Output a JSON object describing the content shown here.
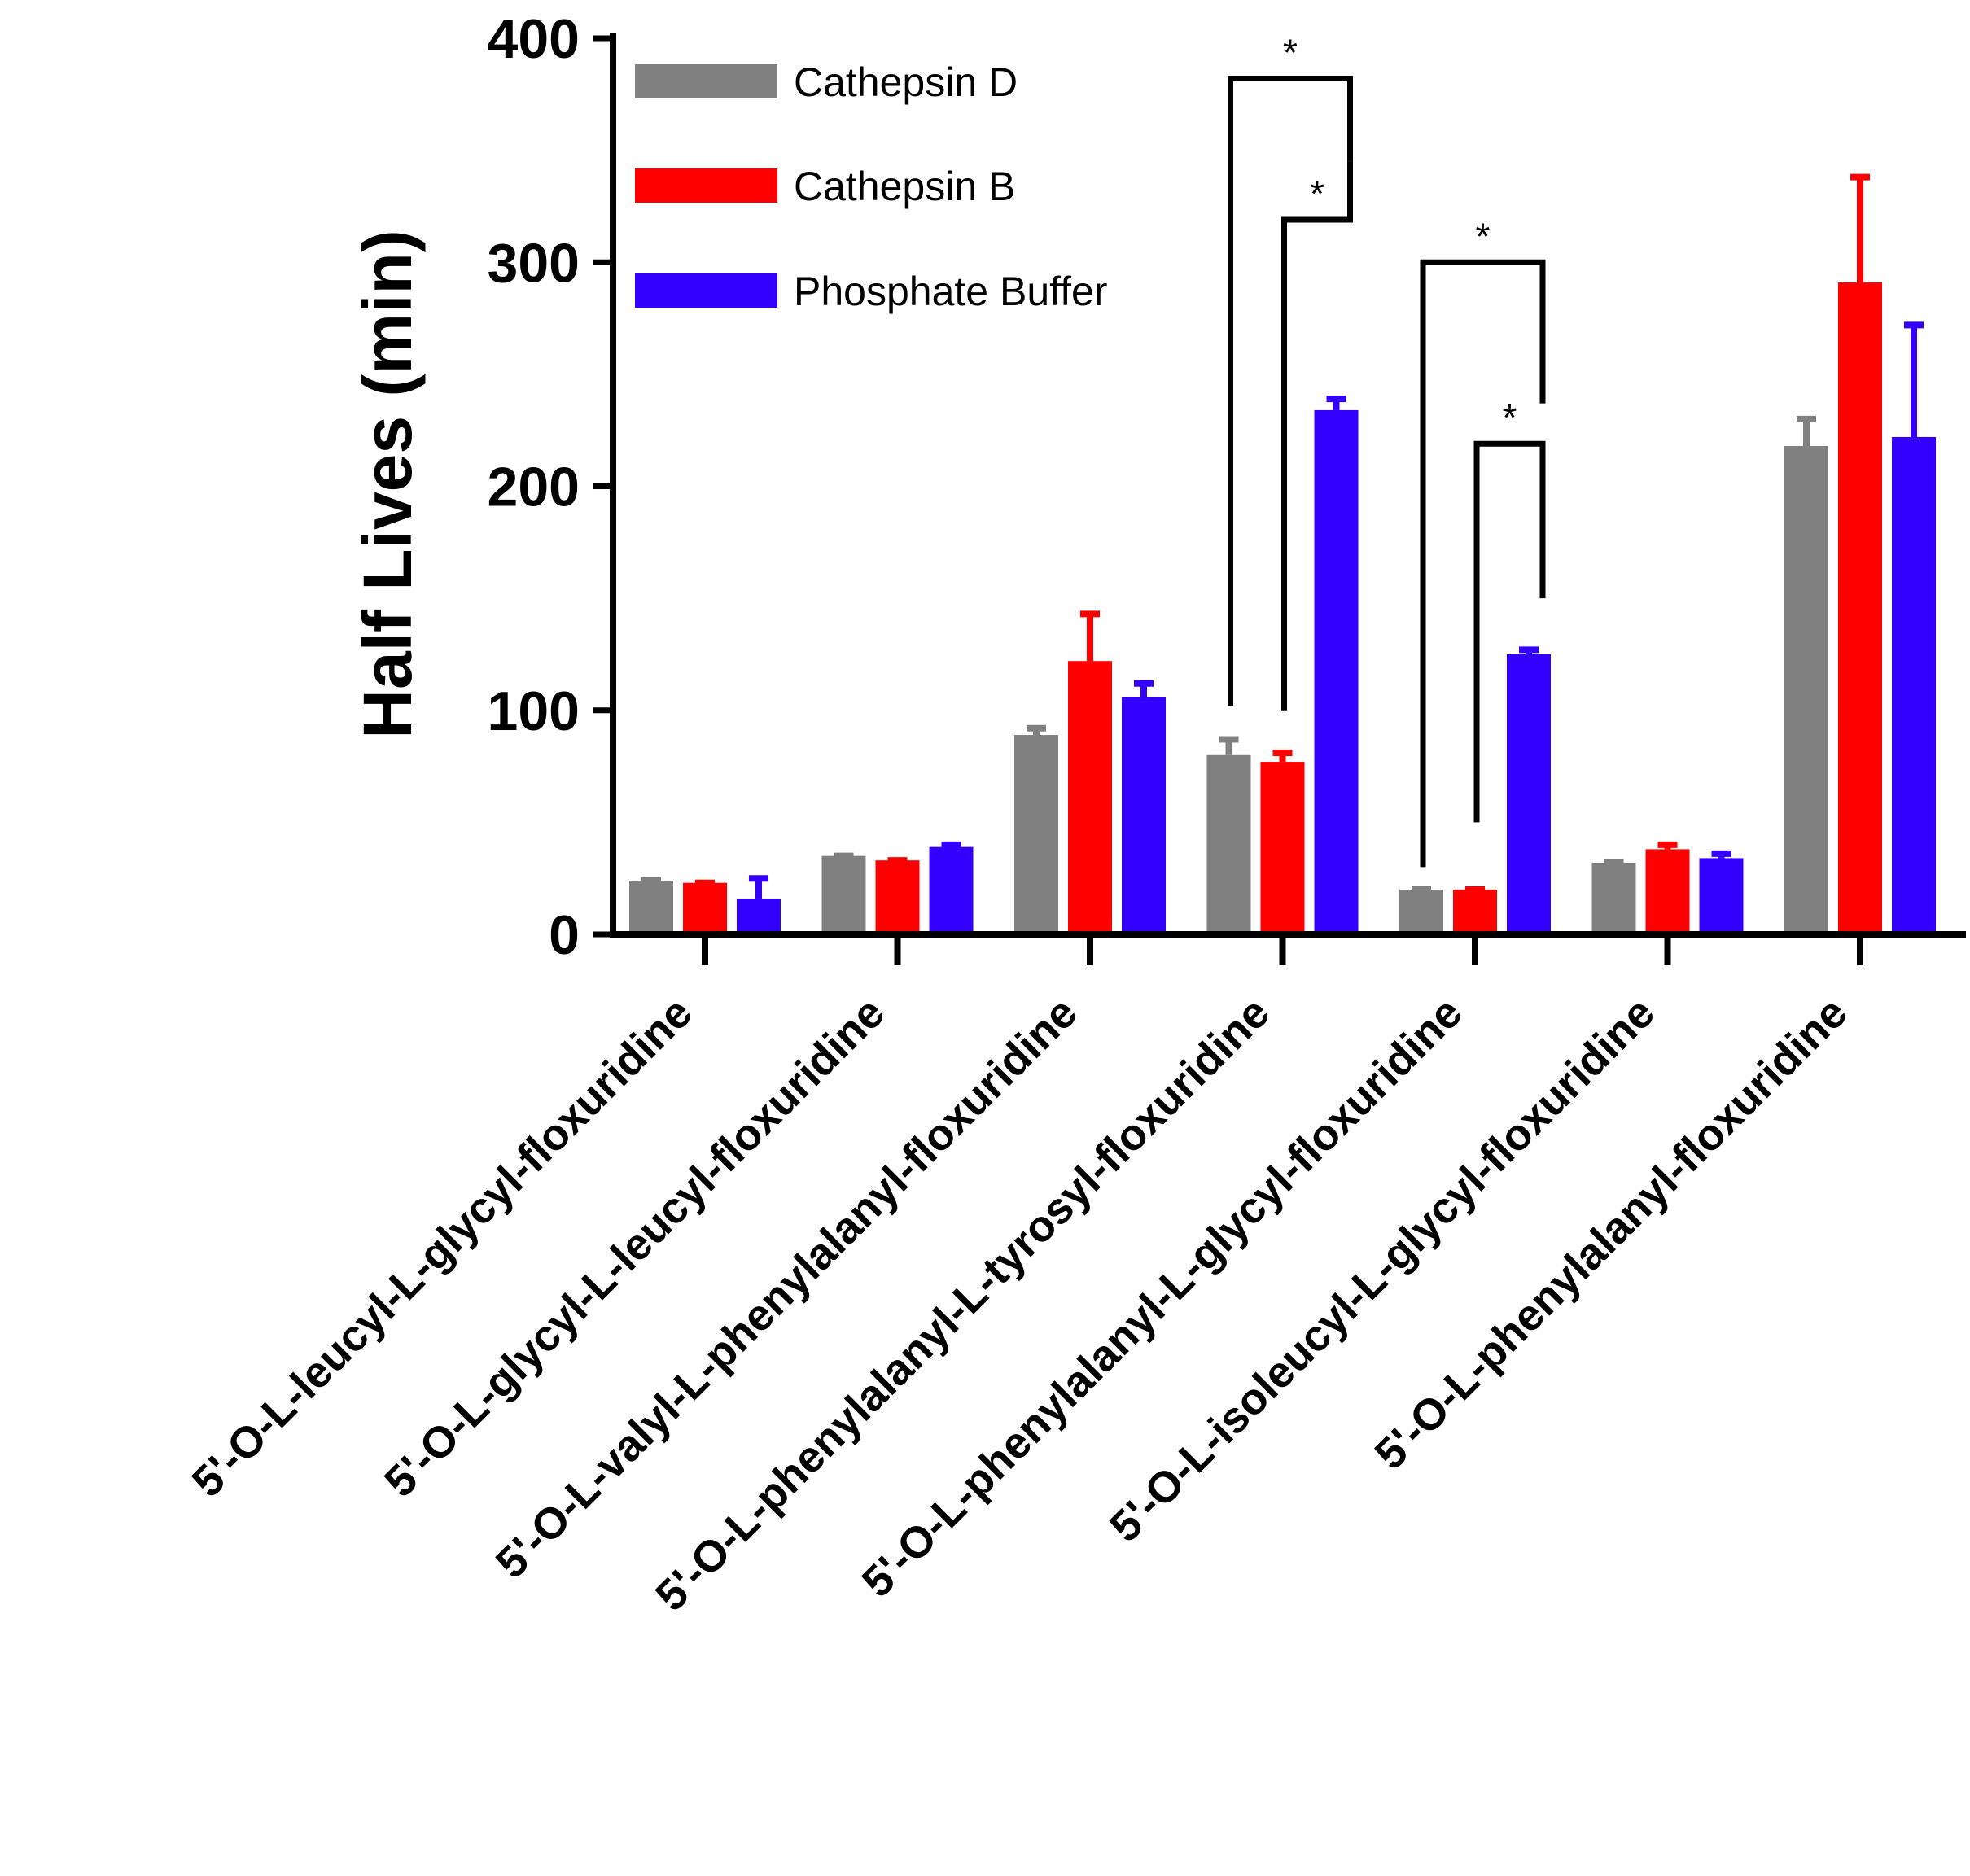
{
  "chart_data": {
    "type": "bar",
    "title": "",
    "xlabel": "",
    "ylabel": "Half Lives (min)",
    "ylim": [
      0,
      400
    ],
    "yticks": [
      0,
      100,
      200,
      300,
      400
    ],
    "legend_position": "top-left",
    "categories": [
      "5'-O-L-leucyl-L-glycyl-floxuridine",
      "5'-O-L-glycyl-L-leucyl-floxuridine",
      "5'-O-L-valyl-L-phenylalanyl-floxuridine",
      "5'-O-L-phenylalanyl-L-tyrosyl-floxuridine",
      "5'-O-L-phenylalanyl-L-glycyl-floxuridine",
      "5'-O-L-isoleucyl-L-glycyl-floxuridine",
      "5'-O-L-phenylalanyl-floxuridine"
    ],
    "series": [
      {
        "name": "Cathepsin D",
        "color": "#808080",
        "values": [
          24,
          35,
          89,
          80,
          20,
          32,
          218
        ],
        "errors": [
          0,
          0,
          3,
          7,
          0,
          0,
          12
        ]
      },
      {
        "name": "Cathepsin B",
        "color": "#ff0000",
        "values": [
          23,
          33,
          122,
          77,
          20,
          38,
          291
        ],
        "errors": [
          0,
          0,
          21,
          4,
          0,
          2,
          47
        ]
      },
      {
        "name": "Phosphate Buffer",
        "color": "#3300ff",
        "values": [
          16,
          39,
          106,
          234,
          125,
          34,
          222
        ],
        "errors": [
          9,
          1,
          6,
          5,
          2,
          2,
          50
        ]
      }
    ],
    "significance": [
      {
        "label": "*",
        "category": 3,
        "from_series": 0,
        "to_series": 2,
        "bracket_y": 382,
        "start_y": 102,
        "end_y": 345
      },
      {
        "label": "*",
        "category": 3,
        "from_series": 1,
        "to_series": 2,
        "bracket_y": 319,
        "start_y": 100,
        "end_y": 345
      },
      {
        "label": "*",
        "category": 4,
        "from_series": 0,
        "to_series": 2,
        "bracket_y": 300,
        "start_y": 30,
        "end_y": 237
      },
      {
        "label": "*",
        "category": 4,
        "from_series": 1,
        "to_series": 2,
        "bracket_y": 219,
        "start_y": 50,
        "end_y": 150
      }
    ]
  }
}
